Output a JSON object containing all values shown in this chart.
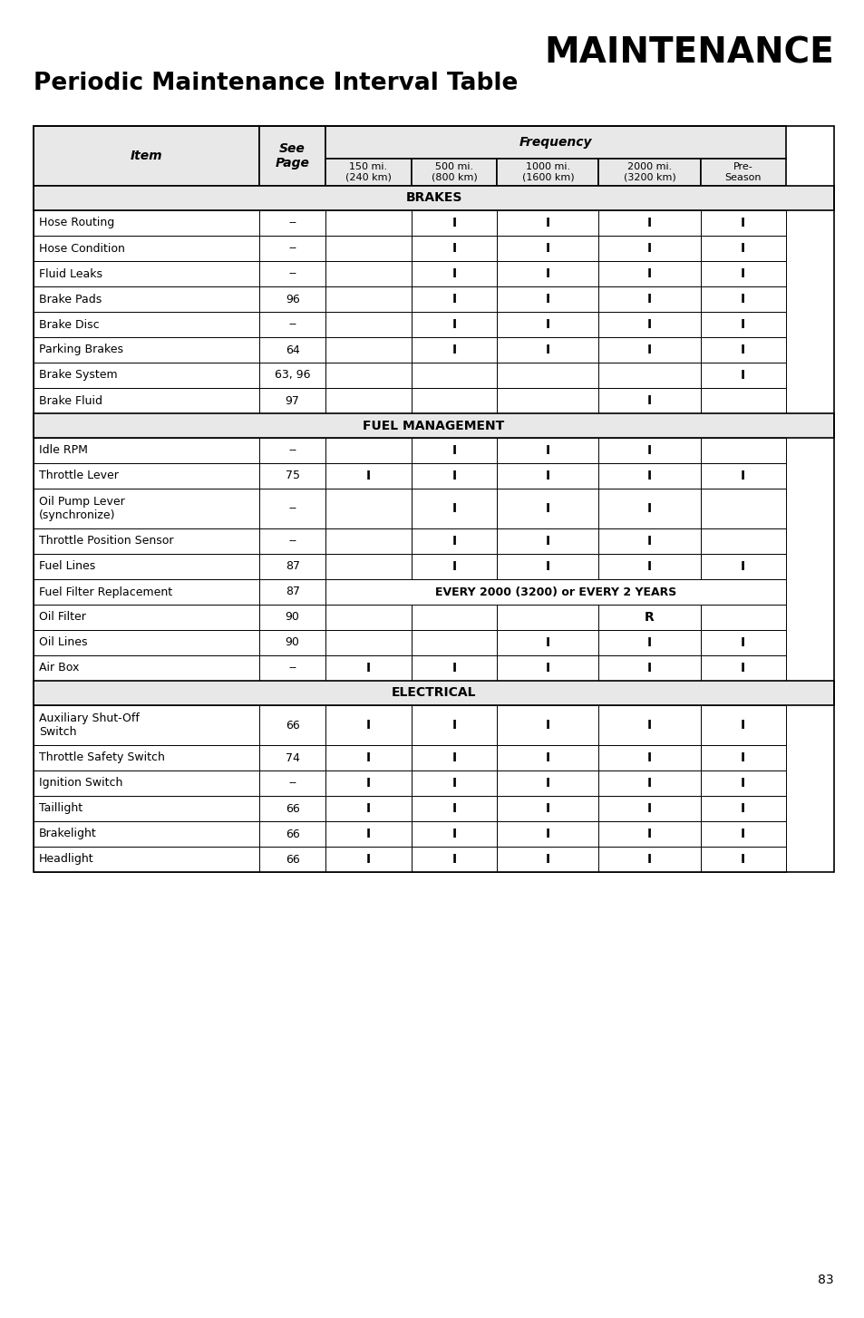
{
  "title1": "MAINTENANCE",
  "title2": "Periodic Maintenance Interval Table",
  "page_number": "83",
  "frequency_label": "Frequency",
  "header_bg": "#e8e8e8",
  "sections": [
    {
      "type": "section_header",
      "label": "BRAKES"
    },
    {
      "type": "row",
      "item": "Hose Routing",
      "page": "--",
      "c1": "",
      "c2": "I",
      "c3": "I",
      "c4": "I",
      "c5": "I"
    },
    {
      "type": "row",
      "item": "Hose Condition",
      "page": "--",
      "c1": "",
      "c2": "I",
      "c3": "I",
      "c4": "I",
      "c5": "I"
    },
    {
      "type": "row",
      "item": "Fluid Leaks",
      "page": "--",
      "c1": "",
      "c2": "I",
      "c3": "I",
      "c4": "I",
      "c5": "I"
    },
    {
      "type": "row",
      "item": "Brake Pads",
      "page": "96",
      "c1": "",
      "c2": "I",
      "c3": "I",
      "c4": "I",
      "c5": "I"
    },
    {
      "type": "row",
      "item": "Brake Disc",
      "page": "--",
      "c1": "",
      "c2": "I",
      "c3": "I",
      "c4": "I",
      "c5": "I"
    },
    {
      "type": "row",
      "item": "Parking Brakes",
      "page": "64",
      "c1": "",
      "c2": "I",
      "c3": "I",
      "c4": "I",
      "c5": "I"
    },
    {
      "type": "row",
      "item": "Brake System",
      "page": "63, 96",
      "c1": "",
      "c2": "",
      "c3": "",
      "c4": "",
      "c5": "I"
    },
    {
      "type": "row",
      "item": "Brake Fluid",
      "page": "97",
      "c1": "",
      "c2": "",
      "c3": "",
      "c4": "I",
      "c5": ""
    },
    {
      "type": "section_header",
      "label": "FUEL MANAGEMENT"
    },
    {
      "type": "row",
      "item": "Idle RPM",
      "page": "--",
      "c1": "",
      "c2": "I",
      "c3": "I",
      "c4": "I",
      "c5": ""
    },
    {
      "type": "row",
      "item": "Throttle Lever",
      "page": "75",
      "c1": "I",
      "c2": "I",
      "c3": "I",
      "c4": "I",
      "c5": "I"
    },
    {
      "type": "row2",
      "item": "Oil Pump Lever\n(synchronize)",
      "page": "--",
      "c1": "",
      "c2": "I",
      "c3": "I",
      "c4": "I",
      "c5": ""
    },
    {
      "type": "row",
      "item": "Throttle Position Sensor",
      "page": "--",
      "c1": "",
      "c2": "I",
      "c3": "I",
      "c4": "I",
      "c5": ""
    },
    {
      "type": "row",
      "item": "Fuel Lines",
      "page": "87",
      "c1": "",
      "c2": "I",
      "c3": "I",
      "c4": "I",
      "c5": "I"
    },
    {
      "type": "span",
      "item": "Fuel Filter Replacement",
      "page": "87",
      "span_text": "EVERY 2000 (3200) or EVERY 2 YEARS"
    },
    {
      "type": "row",
      "item": "Oil Filter",
      "page": "90",
      "c1": "",
      "c2": "",
      "c3": "",
      "c4": "R",
      "c5": ""
    },
    {
      "type": "row",
      "item": "Oil Lines",
      "page": "90",
      "c1": "",
      "c2": "",
      "c3": "I",
      "c4": "I",
      "c5": "I"
    },
    {
      "type": "row",
      "item": "Air Box",
      "page": "--",
      "c1": "I",
      "c2": "I",
      "c3": "I",
      "c4": "I",
      "c5": "I"
    },
    {
      "type": "section_header",
      "label": "ELECTRICAL"
    },
    {
      "type": "row2",
      "item": "Auxiliary Shut-Off\nSwitch",
      "page": "66",
      "c1": "I",
      "c2": "I",
      "c3": "I",
      "c4": "I",
      "c5": "I"
    },
    {
      "type": "row",
      "item": "Throttle Safety Switch",
      "page": "74",
      "c1": "I",
      "c2": "I",
      "c3": "I",
      "c4": "I",
      "c5": "I"
    },
    {
      "type": "row",
      "item": "Ignition Switch",
      "page": "--",
      "c1": "I",
      "c2": "I",
      "c3": "I",
      "c4": "I",
      "c5": "I"
    },
    {
      "type": "row",
      "item": "Taillight",
      "page": "66",
      "c1": "I",
      "c2": "I",
      "c3": "I",
      "c4": "I",
      "c5": "I"
    },
    {
      "type": "row",
      "item": "Brakelight",
      "page": "66",
      "c1": "I",
      "c2": "I",
      "c3": "I",
      "c4": "I",
      "c5": "I"
    },
    {
      "type": "row",
      "item": "Headlight",
      "page": "66",
      "c1": "I",
      "c2": "I",
      "c3": "I",
      "c4": "I",
      "c5": "I"
    }
  ]
}
